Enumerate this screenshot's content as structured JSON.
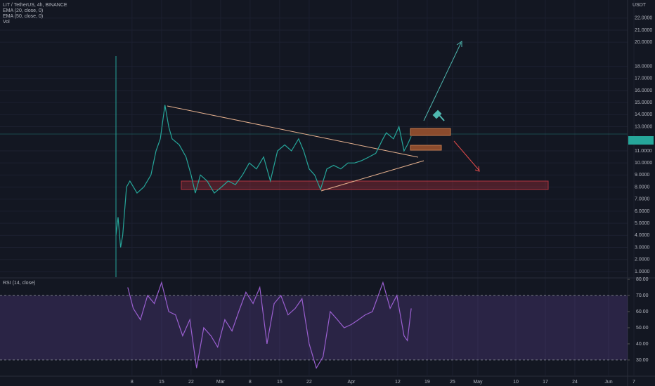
{
  "chart_data": [
    {
      "type": "line",
      "title": "LIT / TetherUS, 4h, BINANCE",
      "indicators": [
        "EMA (20, close, 0)",
        "EMA (50, close, 0)",
        "Vol"
      ],
      "y_axis_label": "USDT",
      "color": "#26a69a",
      "grid": true,
      "x": [
        3.2,
        3.7,
        4.3,
        4.8,
        5.7,
        6.5,
        8.2,
        9.8,
        11.5,
        12.7,
        13.7,
        14.8,
        15.7,
        16.5,
        18.2,
        19.8,
        21,
        22,
        23.2,
        24.8,
        26.5,
        28.2,
        29.8,
        31.5,
        33.2,
        34.8,
        36.5,
        38.2,
        39.8,
        41.5,
        43.2,
        44.8,
        46.5,
        47.7,
        49,
        50.3,
        51.7,
        53.2,
        54.8,
        56.5,
        58.2,
        59.8,
        61.5,
        63.2,
        64.8,
        66.5,
        67.3,
        69,
        70.3,
        71.5,
        72.3,
        73.2
      ],
      "values": [
        4,
        5.5,
        3,
        4,
        8,
        8.5,
        7.5,
        8,
        9,
        11,
        12,
        14.8,
        13,
        12,
        11.5,
        10.5,
        9,
        7.5,
        9,
        8.5,
        7.5,
        8,
        8.5,
        8.2,
        9,
        10,
        9.5,
        10.5,
        8.5,
        11,
        11.5,
        11,
        12,
        11,
        9.5,
        9,
        7.8,
        9.5,
        9.8,
        9.5,
        10,
        10,
        10.2,
        10.5,
        10.8,
        12,
        12.5,
        12,
        13,
        11,
        11.5,
        12.2
      ],
      "xlim": [
        -24.3,
        124.5
      ],
      "xticks": [
        {
          "value": 7,
          "label": "8"
        },
        {
          "value": 14,
          "label": "15"
        },
        {
          "value": 21,
          "label": "22"
        },
        {
          "value": 28,
          "label": "Mar"
        },
        {
          "value": 35,
          "label": "8"
        },
        {
          "value": 42,
          "label": "15"
        },
        {
          "value": 49,
          "label": "22"
        },
        {
          "value": 59,
          "label": "Apr"
        },
        {
          "value": 70,
          "label": "12"
        },
        {
          "value": 77,
          "label": "19"
        },
        {
          "value": 83,
          "label": "25"
        },
        {
          "value": 89,
          "label": "May"
        },
        {
          "value": 98,
          "label": "10"
        },
        {
          "value": 105,
          "label": "17"
        },
        {
          "value": 112,
          "label": "24"
        },
        {
          "value": 120,
          "label": "Jun"
        },
        {
          "value": 126,
          "label": "7"
        }
      ],
      "ylim": [
        0.53,
        23.5
      ],
      "yticks": [
        {
          "value": 22,
          "label": "22.0000"
        },
        {
          "value": 21,
          "label": "21.0000"
        },
        {
          "value": 20,
          "label": "20.0000"
        },
        {
          "value": 18,
          "label": "18.0000"
        },
        {
          "value": 17,
          "label": "17.0000"
        },
        {
          "value": 16,
          "label": "16.0000"
        },
        {
          "value": 15,
          "label": "15.0000"
        },
        {
          "value": 14,
          "label": "14.0000"
        },
        {
          "value": 13,
          "label": "13.0000"
        },
        {
          "value": 11,
          "label": "11.0000"
        },
        {
          "value": 10,
          "label": "10.0000"
        },
        {
          "value": 9,
          "label": "9.0000"
        },
        {
          "value": 8,
          "label": "8.0000"
        },
        {
          "value": 7,
          "label": "7.0000"
        },
        {
          "value": 6,
          "label": "6.0000"
        },
        {
          "value": 5,
          "label": "5.0000"
        },
        {
          "value": 4,
          "label": "4.0000"
        },
        {
          "value": 3,
          "label": "3.0000"
        },
        {
          "value": 2,
          "label": "2.0000"
        },
        {
          "value": 1,
          "label": "1.0000"
        }
      ]
    },
    {
      "type": "line",
      "title": "RSI (14, close)",
      "color": "#9a5fd0",
      "x": [
        6,
        7.3,
        9,
        10.7,
        12.3,
        14,
        15.7,
        17.3,
        19,
        20.7,
        22.3,
        24,
        25.7,
        27.3,
        29,
        30.7,
        32.3,
        34,
        35.7,
        37.3,
        39,
        40.7,
        42.3,
        44,
        45.7,
        47.3,
        49,
        50.7,
        52.3,
        54,
        55.7,
        57.3,
        59,
        60.7,
        62.3,
        64,
        66.5,
        68.2,
        69.8,
        71.5,
        72.3,
        73.2
      ],
      "values": [
        75,
        62,
        55,
        70,
        65,
        78,
        60,
        58,
        45,
        55,
        25,
        50,
        45,
        38,
        55,
        48,
        60,
        72,
        65,
        75,
        40,
        65,
        70,
        58,
        62,
        68,
        40,
        25,
        32,
        60,
        55,
        50,
        52,
        55,
        58,
        60,
        78,
        62,
        70,
        45,
        42,
        62
      ],
      "ylim": [
        20.4,
        80
      ],
      "yticks": [
        {
          "value": 80,
          "label": "80.00"
        },
        {
          "value": 70,
          "label": "70.00"
        },
        {
          "value": 60,
          "label": "60.00"
        },
        {
          "value": 50,
          "label": "50.00"
        },
        {
          "value": 40,
          "label": "40.00"
        },
        {
          "value": 30,
          "label": "30.00"
        }
      ],
      "band": [
        30,
        70
      ]
    }
  ]
}
